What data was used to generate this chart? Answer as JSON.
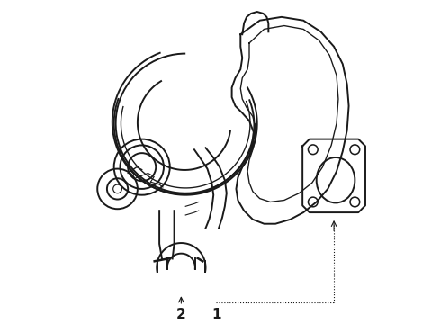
{
  "bg_color": "#ffffff",
  "line_color": "#1a1a1a",
  "fig_width": 4.9,
  "fig_height": 3.6,
  "dpi": 100,
  "label1": "1",
  "label2": "2",
  "lw_main": 1.4,
  "lw_thin": 0.8
}
